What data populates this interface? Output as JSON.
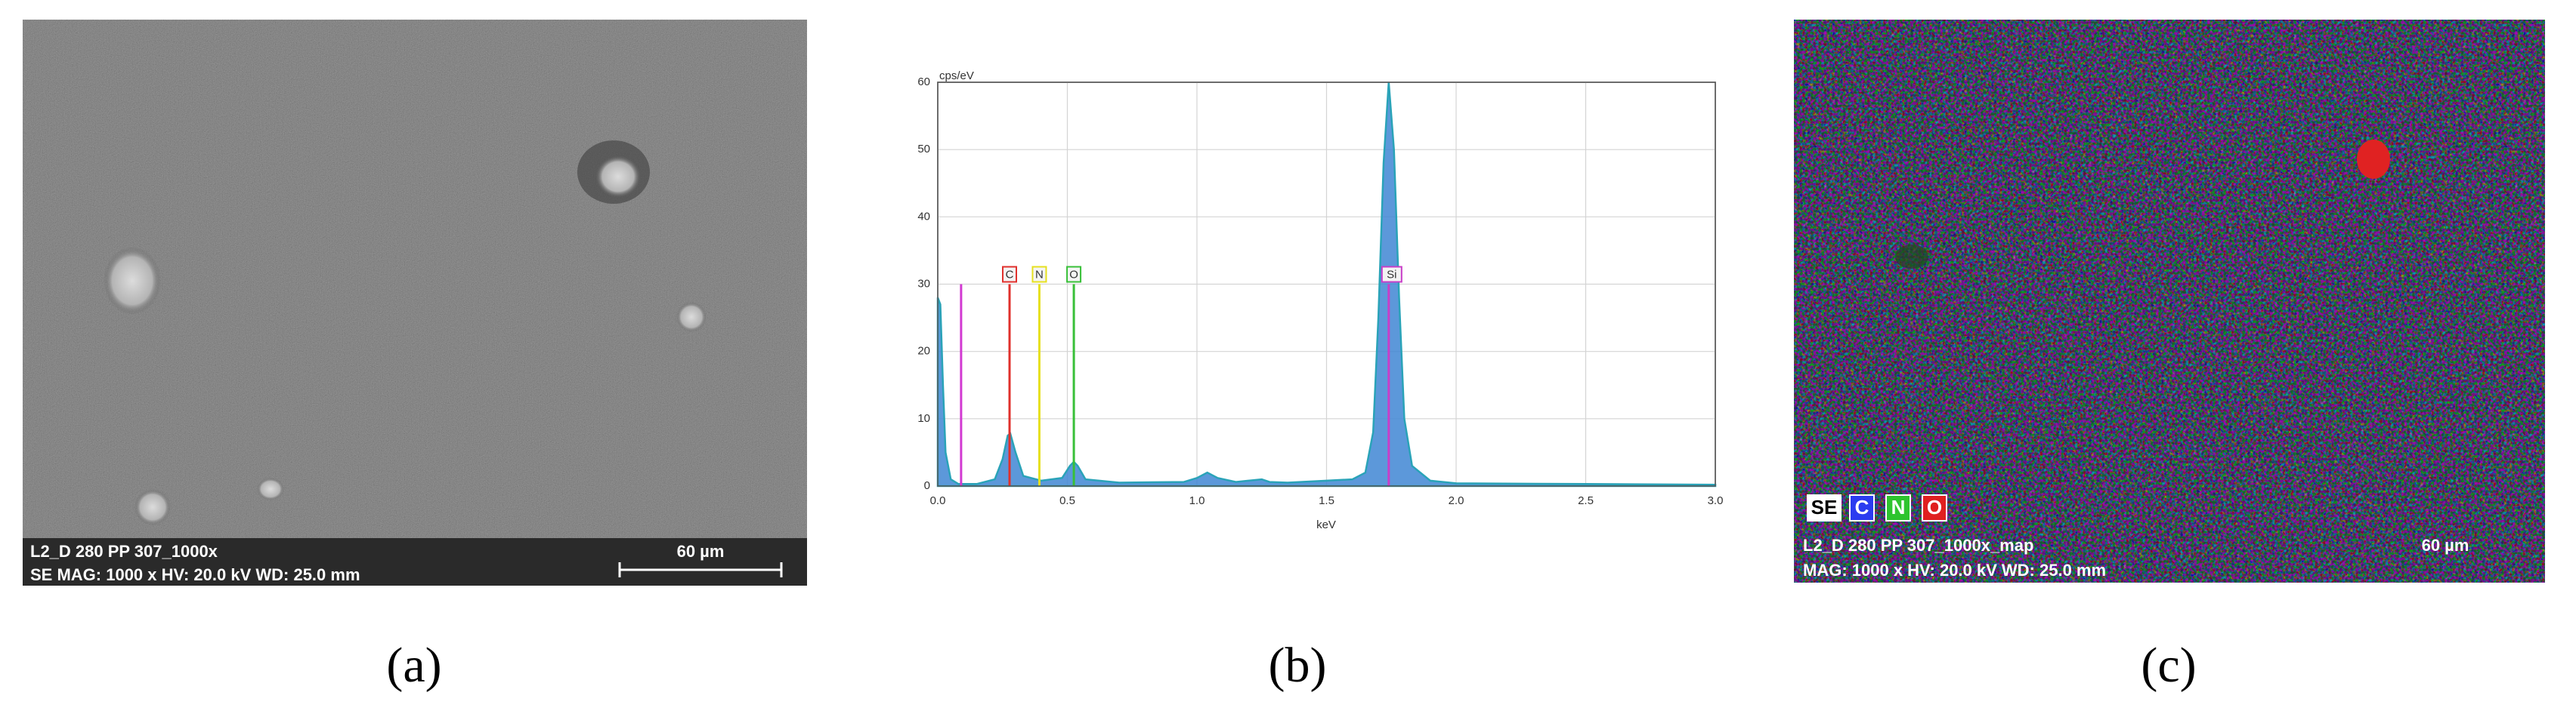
{
  "panel_a": {
    "info_line1": "L2_D 280 PP 307_1000x",
    "info_line2": "SE  MAG: 1000 x  HV: 20.0 kV  WD: 25.0 mm",
    "scale_bar": "60 µm",
    "caption": "(a)"
  },
  "chart_data": {
    "type": "area",
    "caption": "(b)",
    "y_label": "cps/eV",
    "x_label": "keV",
    "color": "#3f86d4",
    "x": [
      0,
      0.01,
      0.02,
      0.03,
      0.05,
      0.08,
      0.15,
      0.22,
      0.25,
      0.27,
      0.28,
      0.3,
      0.33,
      0.4,
      0.48,
      0.51,
      0.525,
      0.54,
      0.57,
      0.7,
      0.95,
      1.0,
      1.04,
      1.08,
      1.15,
      1.25,
      1.28,
      1.35,
      1.5,
      1.6,
      1.65,
      1.68,
      1.7,
      1.72,
      1.74,
      1.76,
      1.78,
      1.8,
      1.83,
      1.9,
      2.0,
      2.5,
      3.0
    ],
    "values": [
      28,
      27,
      15,
      5,
      1,
      0.3,
      0.3,
      1,
      4,
      7.5,
      7.8,
      5,
      1.5,
      0.8,
      1.2,
      3,
      3.6,
      3,
      1,
      0.5,
      0.6,
      1.2,
      2,
      1.2,
      0.6,
      1,
      0.6,
      0.5,
      0.8,
      1,
      2,
      8,
      25,
      48,
      60,
      50,
      28,
      10,
      3,
      0.8,
      0.4,
      0.3,
      0.2
    ],
    "markers": [
      {
        "label": null,
        "x": 0.09,
        "y": 30,
        "color": "#d23ad2"
      },
      {
        "label": "C",
        "x": 0.277,
        "y": 30,
        "color": "#e0302c"
      },
      {
        "label": "N",
        "x": 0.392,
        "y": 30,
        "color": "#e6e020"
      },
      {
        "label": "O",
        "x": 0.525,
        "y": 30,
        "color": "#38c038"
      },
      {
        "label": "Si",
        "x": 1.74,
        "y": 30,
        "color": "#c83ec8"
      }
    ],
    "xlim": [
      0,
      3
    ],
    "ylim": [
      0,
      60
    ],
    "xticks": [
      {
        "value": 0,
        "label": "0.0"
      },
      0.5,
      {
        "value": 1,
        "label": "1.0"
      },
      1.5,
      {
        "value": 2,
        "label": "2.0"
      },
      2.5,
      {
        "value": 3,
        "label": "3.0"
      }
    ],
    "yticks": [
      0,
      10,
      20,
      30,
      40,
      50,
      60
    ],
    "grid": true
  },
  "panel_c": {
    "legend": [
      "SE",
      "C",
      "N",
      "O"
    ],
    "legend_colors": [
      "#ffffff",
      "#2b3cf0",
      "#2ec42e",
      "#e02020"
    ],
    "info_line1": "L2_D 280 PP 307_1000x_map",
    "info_line2": "MAG: 1000 x  HV: 20.0 kV  WD: 25.0 mm",
    "scale_bar": "60 µm",
    "caption": "(c)"
  }
}
